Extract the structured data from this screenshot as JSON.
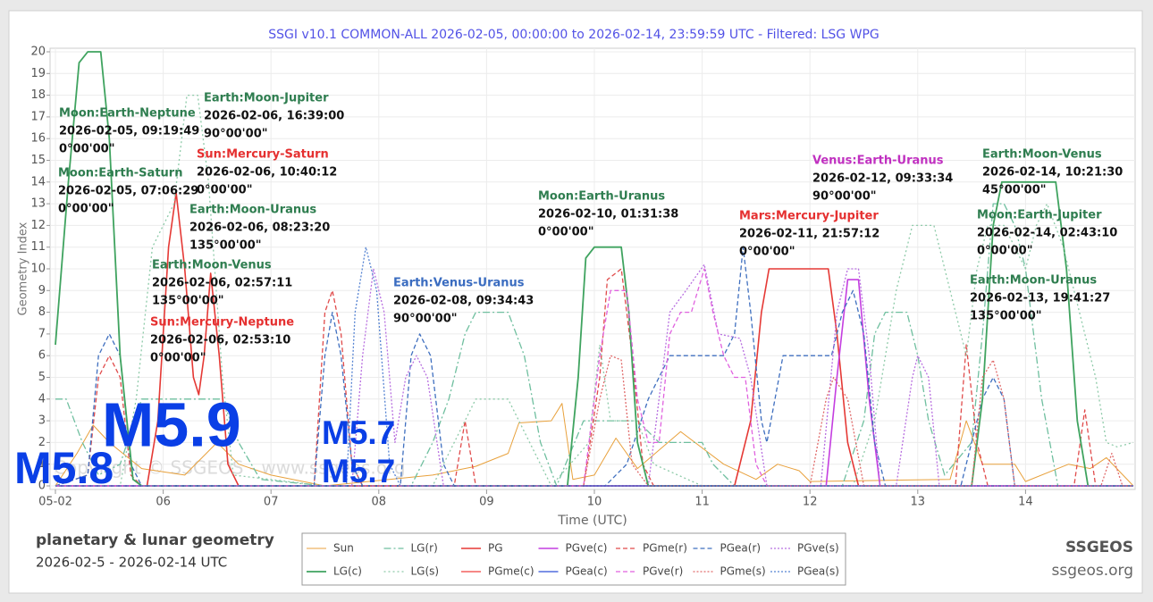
{
  "chart_data": {
    "type": "line",
    "title": "SSGI v10.1 COMMON-ALL 2026-02-05, 00:00:00 to 2026-02-14, 23:59:59 UTC - Filtered: LSG WPG",
    "x_label": "Time (UTC)",
    "y_label": "Geometry Index",
    "xlim": [
      5,
      15
    ],
    "ylim": [
      0,
      20
    ],
    "xticks": [
      {
        "value": 5,
        "label": "05-02"
      },
      {
        "value": 6,
        "label": "06"
      },
      {
        "value": 7,
        "label": "07"
      },
      {
        "value": 8,
        "label": "08"
      },
      {
        "value": 9,
        "label": "09"
      },
      {
        "value": 10,
        "label": "10"
      },
      {
        "value": 11,
        "label": "11"
      },
      {
        "value": 12,
        "label": "12"
      },
      {
        "value": 13,
        "label": "13"
      },
      {
        "value": 14,
        "label": "14"
      }
    ],
    "yticks": [
      0,
      1,
      2,
      3,
      4,
      5,
      6,
      7,
      8,
      9,
      10,
      11,
      12,
      13,
      14,
      15,
      16,
      17,
      18,
      19,
      20
    ],
    "grid": true,
    "series": [
      {
        "name": "Sun",
        "color": "#e8a13c",
        "dash": "none",
        "width": 1,
        "x": [
          5,
          5.2,
          5.35,
          5.5,
          5.8,
          6.2,
          6.5,
          6.7,
          7,
          7.5,
          8.5,
          8.9,
          9.2,
          9.3,
          9.6,
          9.7,
          9.8,
          10,
          10.2,
          10.4,
          10.8,
          11.2,
          11.5,
          11.7,
          11.9,
          12,
          13.3,
          13.45,
          13.6,
          13.9,
          14,
          14.4,
          14.6,
          14.75,
          15
        ],
        "values": [
          0,
          1.5,
          2.8,
          2,
          0.8,
          0.5,
          2,
          1,
          0.5,
          0,
          0.5,
          0.9,
          1.5,
          2.9,
          3,
          3.8,
          0.3,
          0.5,
          2.2,
          0.8,
          2.5,
          1,
          0.3,
          1,
          0.7,
          0.2,
          0.3,
          3,
          1,
          1,
          0.2,
          1,
          0.8,
          1.3,
          0
        ]
      },
      {
        "name": "LG(r)",
        "color": "#6fbf9f",
        "dash": "8 3 2 3",
        "width": 1.3,
        "x": [
          5,
          5.1,
          5.25,
          5.4,
          5.6,
          5.8,
          6.2,
          6.55,
          6.7,
          6.9,
          7.5,
          8.3,
          8.5,
          8.65,
          8.8,
          8.9,
          9.2,
          9.35,
          9.5,
          9.65,
          9.9,
          10.1,
          10.4,
          10.6,
          10.8,
          11,
          11.1,
          11.3,
          12.3,
          12.5,
          12.6,
          12.7,
          12.9,
          13,
          13.1,
          13.25,
          13.5,
          13.6,
          13.7,
          13.8,
          13.9,
          14,
          14.15,
          14.3,
          15
        ],
        "values": [
          4,
          4,
          2,
          0.5,
          1,
          4,
          4,
          4,
          2,
          0.3,
          0,
          0,
          2,
          4,
          7,
          8,
          8,
          6,
          2,
          0,
          3,
          3,
          3,
          2,
          2,
          2,
          1,
          0,
          0,
          3,
          7,
          8,
          8,
          6,
          3,
          0.5,
          2,
          7,
          13,
          13,
          12,
          10,
          4,
          0,
          0
        ]
      },
      {
        "name": "PG",
        "color": "#e53935",
        "dash": "none",
        "width": 1.6,
        "x": [
          5,
          5.85,
          5.95,
          6.05,
          6.12,
          6.2,
          6.28,
          6.33,
          6.38,
          6.44,
          6.52,
          6.6,
          6.7,
          11.3,
          11.45,
          11.55,
          11.62,
          12.17,
          12.25,
          12.35,
          12.45,
          15
        ],
        "values": [
          0,
          0,
          3,
          11,
          13.5,
          10,
          5,
          4.2,
          6,
          9.8,
          6,
          1,
          0,
          0,
          3,
          8,
          10,
          10,
          7,
          2,
          0,
          0
        ]
      },
      {
        "name": "PGve(c)",
        "color": "#c43ee0",
        "dash": "none",
        "width": 1.6,
        "x": [
          5,
          12.15,
          12.25,
          12.35,
          12.45,
          12.55,
          12.65,
          15
        ],
        "values": [
          0,
          0,
          5,
          9.5,
          9.5,
          4,
          0,
          0
        ]
      },
      {
        "name": "PGme(r)",
        "color": "#e04b4b",
        "dash": "5 3",
        "width": 1.3,
        "x": [
          5,
          5.3,
          5.4,
          5.5,
          5.6,
          5.7,
          5.8,
          7.4,
          7.5,
          7.57,
          7.65,
          7.75,
          7.85,
          8.7,
          8.8,
          8.9,
          9.9,
          10.05,
          10.12,
          10.25,
          10.35,
          10.45,
          10.55,
          13.35,
          13.45,
          13.55,
          13.65,
          14.45,
          14.55,
          14.65,
          15
        ],
        "values": [
          0,
          0.5,
          5,
          6,
          5,
          0.5,
          0,
          0,
          8,
          9,
          7,
          1,
          0,
          0,
          3,
          0,
          0,
          5,
          9.5,
          10,
          6,
          1,
          0,
          0,
          6.5,
          2,
          0,
          0,
          3.5,
          0,
          0
        ]
      },
      {
        "name": "PGea(r)",
        "color": "#3f6fbf",
        "dash": "5 3",
        "width": 1.3,
        "x": [
          5,
          5.3,
          5.4,
          5.5,
          5.6,
          5.7,
          5.8,
          7.4,
          7.5,
          7.57,
          7.65,
          7.75,
          7.85,
          8.2,
          8.3,
          8.38,
          8.48,
          8.6,
          8.7,
          10.1,
          10.3,
          10.5,
          10.7,
          11,
          11.2,
          11.3,
          11.38,
          11.45,
          11.55,
          11.6,
          11.75,
          12,
          12.2,
          12.3,
          12.4,
          12.5,
          12.6,
          12.7,
          13.4,
          13.6,
          13.7,
          13.8,
          13.9,
          15
        ],
        "values": [
          0,
          0.5,
          6,
          7,
          6,
          1,
          0,
          0,
          6,
          8,
          6,
          1,
          0,
          0,
          6,
          7,
          6,
          1,
          0,
          0,
          1,
          4,
          6,
          6,
          6,
          7,
          11,
          8,
          3,
          2,
          6,
          6,
          6,
          8,
          9,
          7,
          2,
          0,
          0,
          4,
          5,
          4,
          0,
          0
        ]
      },
      {
        "name": "PGve(s)",
        "color": "#b86fe0",
        "dash": "2 2",
        "width": 1.3,
        "x": [
          5,
          7.75,
          7.85,
          7.95,
          8.05,
          8.15,
          8.25,
          8.35,
          8.45,
          8.6,
          10.5,
          10.7,
          10.85,
          11.02,
          11.15,
          11.35,
          11.45,
          11.6,
          12.1,
          12.25,
          12.35,
          12.45,
          12.55,
          12.65,
          12.8,
          12.95,
          13,
          13.1,
          13.2,
          15
        ],
        "values": [
          0,
          0,
          6,
          10,
          8,
          2,
          5,
          6,
          5,
          0,
          0,
          8,
          9,
          10.2,
          7,
          6.8,
          5,
          0,
          0,
          8,
          10,
          10,
          6,
          0,
          0,
          5,
          6,
          5,
          0,
          0
        ]
      },
      {
        "name": "LG(c)",
        "color": "#3fa35f",
        "dash": "none",
        "width": 1.8,
        "x": [
          5,
          5.12,
          5.22,
          5.3,
          5.42,
          5.5,
          5.6,
          5.72,
          5.8,
          9.75,
          9.85,
          9.92,
          10,
          10.25,
          10.32,
          10.4,
          10.5,
          13.5,
          13.6,
          13.7,
          13.78,
          14.28,
          14.38,
          14.48,
          14.58,
          15
        ],
        "values": [
          6.5,
          14,
          19.5,
          20,
          20,
          16,
          6,
          0.3,
          0,
          0,
          5,
          10.5,
          11,
          11,
          8,
          2,
          0,
          0,
          4,
          12,
          14,
          14,
          10,
          3,
          0,
          0
        ]
      },
      {
        "name": "LG(s)",
        "color": "#8dcaa8",
        "dash": "2 3",
        "width": 1.3,
        "x": [
          5,
          5.6,
          5.75,
          5.9,
          6,
          6.1,
          6.22,
          6.32,
          6.42,
          6.55,
          6.65,
          7.5,
          8.5,
          8.7,
          8.9,
          9.2,
          9.4,
          9.6,
          9.95,
          10.05,
          10.15,
          10.4,
          10.55,
          11,
          12.4,
          12.6,
          12.8,
          12.95,
          13.15,
          13.3,
          13.45,
          13.55,
          13.65,
          13.8,
          13.9,
          14,
          14.1,
          14.2,
          14.35,
          14.5,
          14.65,
          14.75,
          14.85,
          15
        ],
        "values": [
          0,
          0,
          4,
          11,
          12,
          13,
          18,
          18,
          14,
          5,
          0.5,
          0,
          0,
          2,
          4,
          4,
          2,
          0,
          2,
          6.5,
          3,
          3,
          1,
          0,
          0,
          3,
          9,
          12,
          12,
          9,
          6,
          10,
          12,
          12,
          11,
          10,
          12,
          13,
          11,
          8,
          5,
          2,
          1.8,
          2
        ]
      },
      {
        "name": "PGme(c)",
        "color": "#f0423e",
        "dash": "none",
        "width": 1.3,
        "x": [
          5,
          15
        ],
        "values": [
          0,
          0
        ]
      },
      {
        "name": "PGea(c)",
        "color": "#2d4fd6",
        "dash": "none",
        "width": 1.3,
        "x": [
          5,
          15
        ],
        "values": [
          0,
          0
        ]
      },
      {
        "name": "PGve(r)",
        "color": "#e062df",
        "dash": "5 3",
        "width": 1.3,
        "x": [
          5,
          9.9,
          10.05,
          10.15,
          10.3,
          10.4,
          10.5,
          10.6,
          10.7,
          10.8,
          10.9,
          11.02,
          11.1,
          11.2,
          11.3,
          11.4,
          11.5,
          11.6,
          15
        ],
        "values": [
          0,
          0,
          6,
          9,
          9,
          4,
          2,
          2,
          7,
          8,
          8,
          10,
          8,
          6,
          5,
          5,
          1,
          0,
          0
        ]
      },
      {
        "name": "PGme(s)",
        "color": "#e06a6a",
        "dash": "2 2",
        "width": 1.3,
        "x": [
          5,
          9.9,
          10.05,
          10.15,
          10.25,
          10.35,
          10.5,
          12,
          12.15,
          12.22,
          12.35,
          12.5,
          13.5,
          13.6,
          13.7,
          13.8,
          13.9,
          14.7,
          14.8,
          14.9,
          15
        ],
        "values": [
          0,
          0,
          4,
          6,
          5.8,
          1,
          0,
          0,
          4,
          5,
          4,
          0,
          0,
          5,
          5.8,
          4,
          0,
          0,
          1.5,
          0,
          0
        ]
      },
      {
        "name": "PGea(s)",
        "color": "#5583d2",
        "dash": "2 2",
        "width": 1.3,
        "x": [
          5,
          7.7,
          7.78,
          7.88,
          7.98,
          8.1,
          8.2,
          15
        ],
        "values": [
          0,
          0,
          8,
          11,
          9,
          1,
          0,
          0
        ]
      }
    ],
    "annotations": [
      {
        "title": "Moon:Earth-Neptune",
        "date": "2026-02-05, 09:19:49",
        "angle": "0°00'00\"",
        "color": "#2e7d4f"
      },
      {
        "title": "Moon:Earth-Saturn",
        "date": "2026-02-05, 07:06:29",
        "angle": "0°00'00\"",
        "color": "#2e7d4f"
      },
      {
        "title": "Earth:Moon-Jupiter",
        "date": "2026-02-06, 16:39:00",
        "angle": "90°00'00\"",
        "color": "#2e7d4f"
      },
      {
        "title": "Sun:Mercury-Saturn",
        "date": "2026-02-06, 10:40:12",
        "angle": "0°00'00\"",
        "color": "#e53030"
      },
      {
        "title": "Earth:Moon-Uranus",
        "date": "2026-02-06, 08:23:20",
        "angle": "135°00'00\"",
        "color": "#2e7d4f"
      },
      {
        "title": "Earth:Moon-Venus",
        "date": "2026-02-06, 02:57:11",
        "angle": "135°00'00\"",
        "color": "#2e7d4f"
      },
      {
        "title": "Sun:Mercury-Neptune",
        "date": "2026-02-06, 02:53:10",
        "angle": "0°00'00\"",
        "color": "#e53030"
      },
      {
        "title": "Earth:Venus-Uranus",
        "date": "2026-02-08, 09:34:43",
        "angle": "90°00'00\"",
        "color": "#3a6cc0"
      },
      {
        "title": "Moon:Earth-Uranus",
        "date": "2026-02-10, 01:31:38",
        "angle": "0°00'00\"",
        "color": "#2e7d4f"
      },
      {
        "title": "Mars:Mercury-Jupiter",
        "date": "2026-02-11, 21:57:12",
        "angle": "0°00'00\"",
        "color": "#e53030"
      },
      {
        "title": "Venus:Earth-Uranus",
        "date": "2026-02-12, 09:33:34",
        "angle": "90°00'00\"",
        "color": "#c030c0"
      },
      {
        "title": "Earth:Moon-Venus",
        "date": "2026-02-14, 10:21:30",
        "angle": "45°00'00\"",
        "color": "#2e7d4f"
      },
      {
        "title": "Moon:Earth-Jupiter",
        "date": "2026-02-14, 02:43:10",
        "angle": "0°00'00\"",
        "color": "#2e7d4f"
      },
      {
        "title": "Earth:Moon-Uranus",
        "date": "2026-02-13, 19:41:27",
        "angle": "135°00'00\"",
        "color": "#2e7d4f"
      }
    ],
    "quakes": [
      "M5.8",
      "M5.9",
      "M5.7",
      "M5.7"
    ],
    "quake_color": "#0a3fe6",
    "watermark": "Copyright © SSGEOS - www.ssgeos.org",
    "footer": {
      "heading": "planetary & lunar geometry",
      "range": "2026-02-5 - 2026-02-14 UTC",
      "brand": "SSGEOS",
      "site": "ssgeos.org"
    }
  }
}
